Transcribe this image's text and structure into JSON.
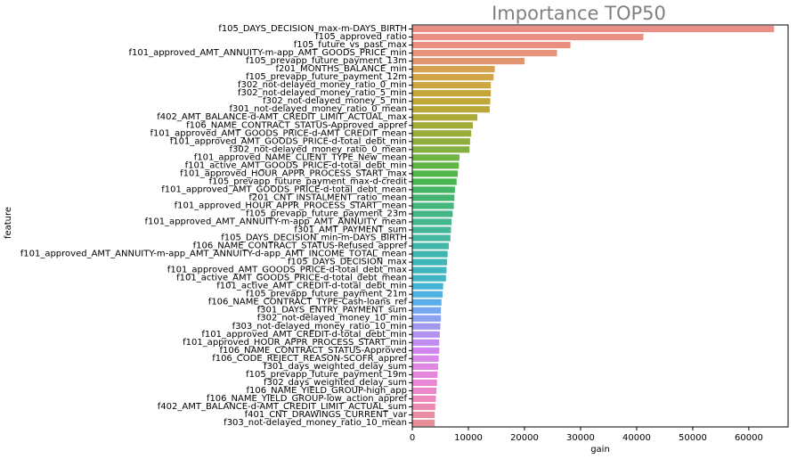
{
  "chart_data": {
    "type": "bar",
    "orientation": "horizontal",
    "title": "Importance TOP50",
    "xlabel": "gain",
    "ylabel": "feature",
    "xlim": [
      0,
      67000
    ],
    "xticks": [
      0,
      10000,
      20000,
      30000,
      40000,
      50000,
      60000
    ],
    "grid": false,
    "categories": [
      "f105_DAYS_DECISION_max-m-DAYS_BIRTH",
      "f105_approved_ratio",
      "f105_future_vs_past_max",
      "f101_approved_AMT_ANNUITY-m-app_AMT_GOODS_PRICE_min",
      "f105_prevapp_future_payment_13m",
      "f201_MONTHS_BALANCE_min",
      "f105_prevapp_future_payment_12m",
      "f302_not-delayed_money_ratio_0_min",
      "f302_not-delayed_money_ratio_5_min",
      "f302_not-delayed_money_5_min",
      "f301_not-delayed_money_ratio_0_mean",
      "f402_AMT_BALANCE-d-AMT_CREDIT_LIMIT_ACTUAL_max",
      "f106_NAME_CONTRACT_STATUS-Approved_appref",
      "f101_approved_AMT_GOODS_PRICE-d-AMT_CREDIT_mean",
      "f101_approved_AMT_GOODS_PRICE-d-total_debt_min",
      "f302_not-delayed_money_ratio_0_mean",
      "f101_approved_NAME_CLIENT_TYPE_New_mean",
      "f101_active_AMT_GOODS_PRICE-d-total_debt_min",
      "f101_approved_HOUR_APPR_PROCESS_START_max",
      "f105_prevapp_future_payment_max-d-credit",
      "f101_approved_AMT_GOODS_PRICE-d-total_debt_mean",
      "f201_CNT_INSTALMENT_ratio_mean",
      "f101_approved_HOUR_APPR_PROCESS_START_mean",
      "f105_prevapp_future_payment_23m",
      "f101_approved_AMT_ANNUITY-m-app_AMT_ANNUITY_mean",
      "f301_AMT_PAYMENT_sum",
      "f105_DAYS_DECISION_min-m-DAYS_BIRTH",
      "f106_NAME_CONTRACT_STATUS-Refused_appref",
      "f101_approved_AMT_ANNUITY-m-app_AMT_ANNUITY-d-app_AMT_INCOME_TOTAL_mean",
      "f105_DAYS_DECISION_max",
      "f101_approved_AMT_GOODS_PRICE-d-total_debt_max",
      "f101_active_AMT_GOODS_PRICE-d-total_debt_mean",
      "f101_active_AMT_CREDIT-d-total_debt_min",
      "f105_prevapp_future_payment_21m",
      "f106_NAME_CONTRACT_TYPE-Cash-loans_ref",
      "f301_DAYS_ENTRY_PAYMENT_sum",
      "f302_not-delayed_money_10_min",
      "f303_not-delayed_money_ratio_10_min",
      "f101_approved_AMT_CREDIT-d-total_debt_min",
      "f101_approved_HOUR_APPR_PROCESS_START_min",
      "f106_NAME_CONTRACT_STATUS-Approved",
      "f106_CODE_REJECT_REASON-SCOFR_appref",
      "f301_days_weighted_delay_sum",
      "f105_prevapp_future_payment_19m",
      "f302_days_weighted_delay_sum",
      "f106_NAME_YIELD_GROUP-high_app",
      "f106_NAME_YIELD_GROUP-low_action_appref",
      "f402_AMT_BALANCE-d-AMT_CREDIT_LIMIT_ACTUAL_sum",
      "f401_CNT_DRAWINGS_CURRENT_var",
      "f303_not-delayed_money_ratio_10_mean"
    ],
    "values": [
      64500,
      41200,
      28200,
      25800,
      20000,
      14700,
      14500,
      14000,
      14000,
      13900,
      13800,
      11600,
      10800,
      10500,
      10300,
      10200,
      8400,
      8300,
      8100,
      7900,
      7600,
      7500,
      7400,
      7200,
      7000,
      6900,
      6800,
      6500,
      6300,
      6200,
      6100,
      6000,
      5500,
      5400,
      5200,
      5100,
      5100,
      5000,
      4900,
      4800,
      4800,
      4700,
      4600,
      4500,
      4400,
      4300,
      4200,
      4100,
      4000,
      4000
    ],
    "colors": [
      "#ea8f88",
      "#e98f84",
      "#e99080",
      "#e7927a",
      "#e39470",
      "#d9a250",
      "#d2a645",
      "#cca63f",
      "#c6a63b",
      "#c0a73a",
      "#b9a739",
      "#acaa39",
      "#a3ab39",
      "#99ad39",
      "#8faf3c",
      "#83b03f",
      "#6db445",
      "#60b547",
      "#52b548",
      "#47b54f",
      "#44b564",
      "#45b571",
      "#45b67c",
      "#45b786",
      "#44b78f",
      "#44b799",
      "#44b7a1",
      "#42b6a8",
      "#41b6b0",
      "#41b5b8",
      "#42b5bf",
      "#42b4c8",
      "#45b3d3",
      "#4db2e0",
      "#5caeea",
      "#76a7ef",
      "#8ca1f0",
      "#a199f0",
      "#b293f0",
      "#c18cf0",
      "#d085ef",
      "#d98ae8",
      "#df88e2",
      "#e587dc",
      "#e987d4",
      "#ec88c9",
      "#ec89bd",
      "#ec8bb1",
      "#eb8ca5",
      "#e98d98"
    ]
  }
}
